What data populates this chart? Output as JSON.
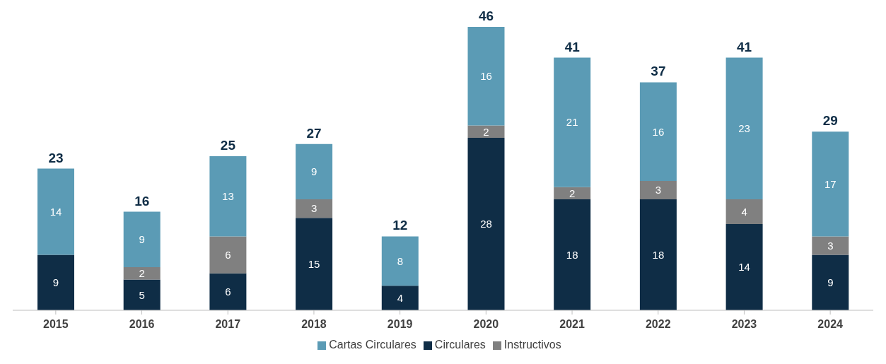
{
  "chart_data": {
    "type": "bar",
    "stacked": true,
    "categories": [
      "2015",
      "2016",
      "2017",
      "2018",
      "2019",
      "2020",
      "2021",
      "2022",
      "2023",
      "2024"
    ],
    "series": [
      {
        "name": "Circulares",
        "color": "#0f2d46",
        "values": [
          9,
          5,
          6,
          15,
          4,
          28,
          18,
          18,
          14,
          9
        ]
      },
      {
        "name": "Instructivos",
        "color": "#808080",
        "values": [
          null,
          2,
          6,
          3,
          null,
          2,
          2,
          3,
          4,
          3
        ]
      },
      {
        "name": "Cartas Circulares",
        "color": "#5b9bb5",
        "values": [
          14,
          9,
          13,
          9,
          8,
          16,
          21,
          16,
          23,
          17
        ]
      }
    ],
    "data_labels": true,
    "totals": [
      "23",
      "16",
      "25",
      "27",
      "12",
      "46",
      "41",
      "37",
      "41",
      "29"
    ],
    "grid": false,
    "legend": "bottom"
  }
}
